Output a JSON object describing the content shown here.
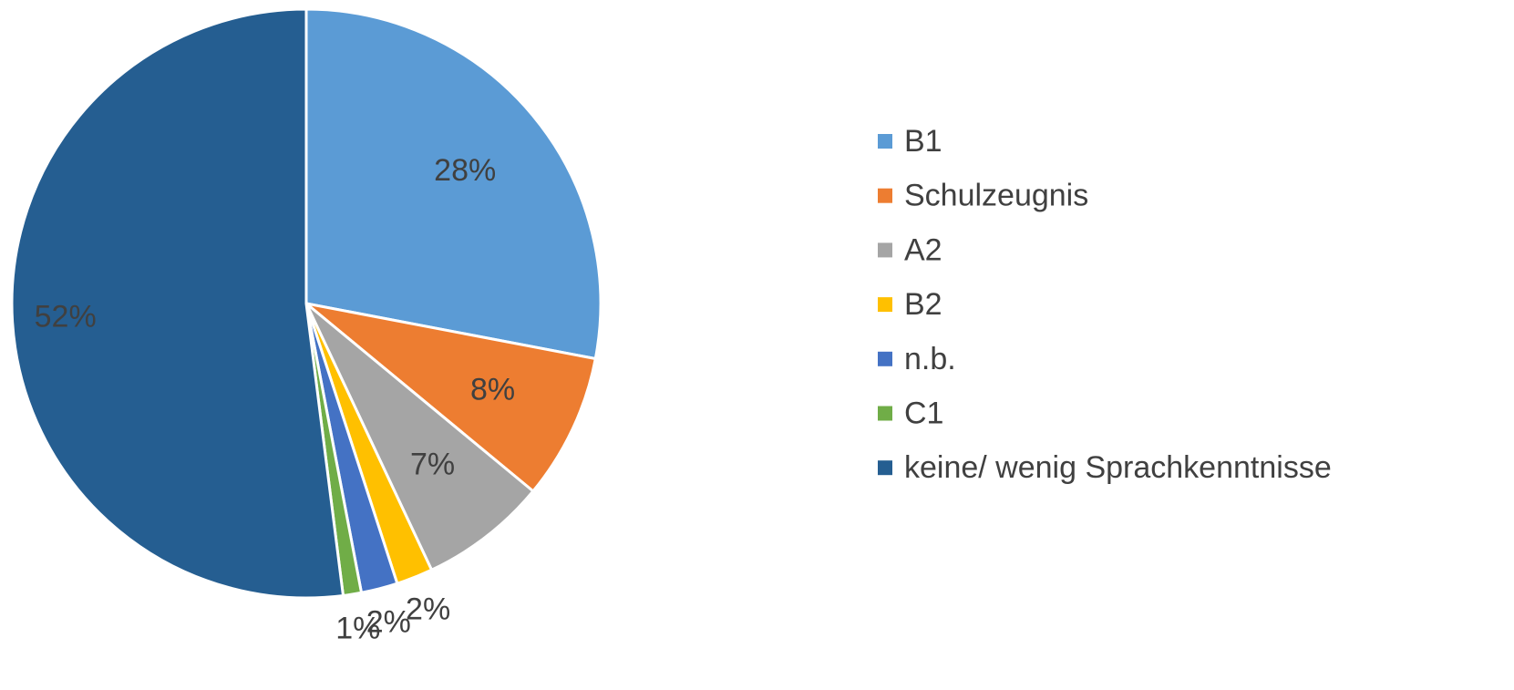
{
  "chart_data": {
    "type": "pie",
    "categories": [
      "B1",
      "Schulzeugnis",
      "A2",
      "B2",
      "n.b.",
      "C1",
      "keine/ wenig Sprachkenntnisse"
    ],
    "values": [
      28,
      8,
      7,
      2,
      2,
      1,
      52
    ],
    "value_labels": [
      "28%",
      "8%",
      "7%",
      "2%",
      "2%",
      "1%",
      "52%"
    ],
    "colors": [
      "#5b9bd5",
      "#ed7d31",
      "#a5a5a5",
      "#ffc000",
      "#4472c4",
      "#70ad47",
      "#255e91"
    ],
    "legend": "right"
  }
}
